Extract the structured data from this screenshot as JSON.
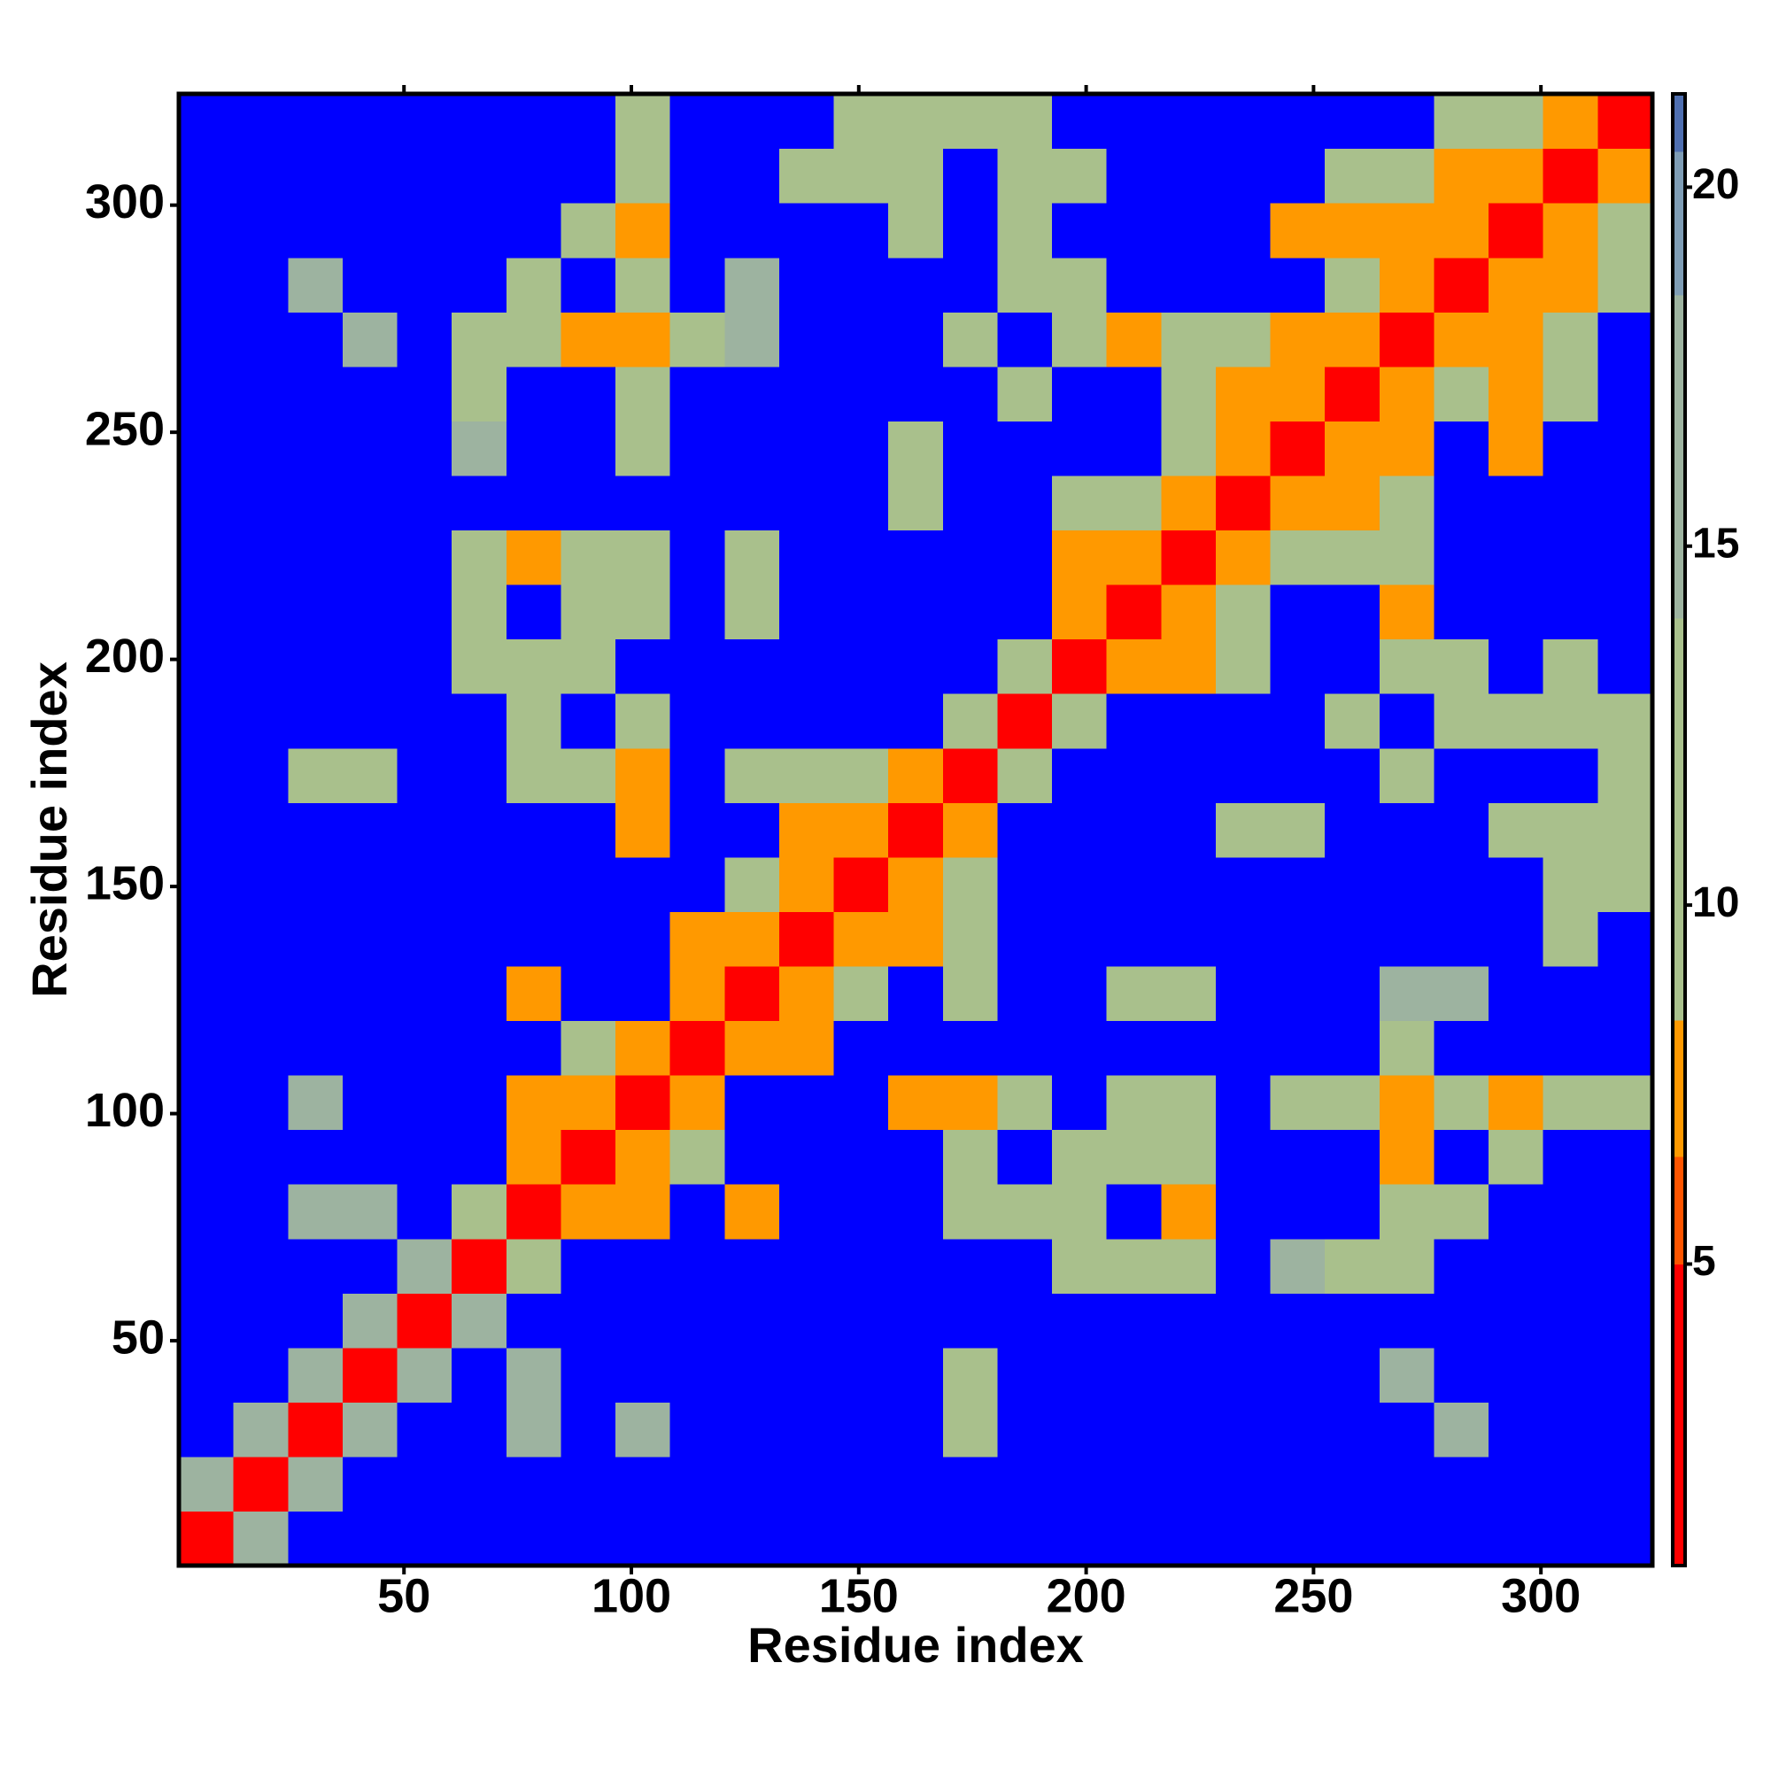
{
  "chart_data": {
    "type": "heatmap",
    "xlabel": "Residue index",
    "ylabel": "Residue index",
    "bins": [
      0.5,
      12.5,
      24.5,
      36.5,
      48.5,
      60.5,
      72.5,
      84.5,
      96.5,
      108.5,
      120.5,
      132.5,
      144.5,
      156.5,
      168.5,
      180.5,
      192.5,
      204.5,
      216.5,
      228.5,
      240.5,
      252.5,
      264.5,
      276.5,
      288.5,
      300.5,
      312.5,
      324.5
    ],
    "xlim": [
      0.5,
      324.5
    ],
    "ylim": [
      0.5,
      324.5
    ],
    "xticks": [
      50,
      100,
      150,
      200,
      250,
      300
    ],
    "yticks": [
      50,
      100,
      150,
      200,
      250,
      300
    ],
    "values": [
      [
        3,
        15,
        22,
        22,
        22,
        22,
        22,
        22,
        22,
        22,
        22,
        22,
        22,
        22,
        22,
        22,
        22,
        22,
        22,
        22,
        22,
        22,
        22,
        22,
        22,
        22,
        22
      ],
      [
        15,
        3,
        15,
        22,
        22,
        22,
        22,
        22,
        22,
        22,
        22,
        22,
        22,
        22,
        22,
        22,
        22,
        22,
        22,
        22,
        22,
        22,
        22,
        22,
        22,
        22,
        22
      ],
      [
        22,
        15,
        3,
        15,
        22,
        22,
        15,
        22,
        15,
        22,
        22,
        22,
        22,
        22,
        11,
        22,
        22,
        22,
        22,
        22,
        22,
        22,
        22,
        15,
        22,
        22,
        22
      ],
      [
        22,
        22,
        15,
        3,
        15,
        22,
        15,
        22,
        22,
        22,
        22,
        22,
        22,
        22,
        11,
        22,
        22,
        22,
        22,
        22,
        22,
        22,
        15,
        22,
        22,
        22,
        22
      ],
      [
        22,
        22,
        22,
        15,
        3,
        15,
        22,
        22,
        22,
        22,
        22,
        22,
        22,
        22,
        22,
        22,
        22,
        22,
        22,
        22,
        22,
        22,
        22,
        22,
        22,
        22,
        22
      ],
      [
        22,
        22,
        22,
        22,
        15,
        3,
        11,
        22,
        22,
        22,
        22,
        22,
        22,
        22,
        22,
        22,
        11,
        11,
        11,
        22,
        15,
        11,
        11,
        22,
        22,
        22,
        22
      ],
      [
        22,
        22,
        15,
        15,
        22,
        11,
        3,
        7,
        7,
        22,
        7,
        22,
        22,
        22,
        11,
        11,
        11,
        22,
        7,
        22,
        22,
        22,
        11,
        11,
        22,
        22,
        22
      ],
      [
        22,
        22,
        22,
        22,
        22,
        22,
        7,
        3,
        7,
        11,
        22,
        22,
        22,
        22,
        11,
        22,
        11,
        11,
        11,
        22,
        22,
        22,
        7,
        22,
        11,
        22,
        22
      ],
      [
        22,
        22,
        15,
        22,
        22,
        22,
        7,
        7,
        3,
        7,
        22,
        22,
        22,
        7,
        7,
        11,
        22,
        11,
        11,
        22,
        11,
        11,
        7,
        11,
        7,
        11,
        11
      ],
      [
        22,
        22,
        22,
        22,
        22,
        22,
        22,
        11,
        7,
        3,
        7,
        7,
        22,
        22,
        22,
        22,
        22,
        22,
        22,
        22,
        22,
        22,
        11,
        22,
        22,
        22,
        22
      ],
      [
        22,
        22,
        22,
        22,
        22,
        22,
        7,
        22,
        22,
        7,
        3,
        7,
        11,
        22,
        11,
        22,
        22,
        11,
        11,
        22,
        22,
        22,
        15,
        15,
        22,
        22,
        22
      ],
      [
        22,
        22,
        22,
        22,
        22,
        22,
        22,
        22,
        22,
        7,
        7,
        3,
        7,
        7,
        11,
        22,
        22,
        22,
        22,
        22,
        22,
        22,
        22,
        22,
        22,
        11,
        22
      ],
      [
        22,
        22,
        22,
        22,
        22,
        22,
        22,
        22,
        22,
        22,
        11,
        7,
        3,
        7,
        11,
        22,
        22,
        22,
        22,
        22,
        22,
        22,
        22,
        22,
        22,
        11,
        11
      ],
      [
        22,
        22,
        22,
        22,
        22,
        22,
        22,
        22,
        7,
        22,
        22,
        7,
        7,
        3,
        7,
        22,
        22,
        22,
        22,
        11,
        11,
        22,
        22,
        22,
        11,
        11,
        11
      ],
      [
        22,
        22,
        11,
        11,
        22,
        22,
        11,
        11,
        7,
        22,
        11,
        11,
        11,
        7,
        3,
        11,
        22,
        22,
        22,
        22,
        22,
        22,
        11,
        22,
        22,
        22,
        11
      ],
      [
        22,
        22,
        22,
        22,
        22,
        22,
        11,
        22,
        11,
        22,
        22,
        22,
        22,
        22,
        11,
        3,
        11,
        22,
        22,
        22,
        22,
        11,
        22,
        11,
        11,
        11,
        11
      ],
      [
        22,
        22,
        22,
        22,
        22,
        11,
        11,
        11,
        22,
        22,
        22,
        22,
        22,
        22,
        22,
        11,
        3,
        7,
        7,
        11,
        22,
        22,
        11,
        11,
        22,
        11,
        22
      ],
      [
        22,
        22,
        22,
        22,
        22,
        11,
        22,
        11,
        11,
        22,
        11,
        22,
        22,
        22,
        22,
        22,
        7,
        3,
        7,
        11,
        22,
        22,
        7,
        22,
        22,
        22,
        22
      ],
      [
        22,
        22,
        22,
        22,
        22,
        11,
        7,
        11,
        11,
        22,
        11,
        22,
        22,
        22,
        22,
        22,
        7,
        7,
        3,
        7,
        11,
        11,
        11,
        22,
        22,
        22,
        22
      ],
      [
        22,
        22,
        22,
        22,
        22,
        22,
        22,
        22,
        22,
        22,
        22,
        22,
        22,
        11,
        22,
        22,
        11,
        11,
        7,
        3,
        7,
        7,
        11,
        22,
        22,
        22,
        22
      ],
      [
        22,
        22,
        22,
        22,
        22,
        15,
        22,
        22,
        11,
        22,
        22,
        22,
        22,
        11,
        22,
        22,
        22,
        22,
        11,
        7,
        3,
        7,
        7,
        22,
        7,
        22,
        22
      ],
      [
        22,
        22,
        22,
        22,
        22,
        11,
        22,
        22,
        11,
        22,
        22,
        22,
        22,
        22,
        22,
        11,
        22,
        22,
        11,
        7,
        7,
        3,
        7,
        11,
        7,
        11,
        22
      ],
      [
        22,
        22,
        22,
        15,
        22,
        11,
        11,
        7,
        7,
        11,
        15,
        22,
        22,
        22,
        11,
        22,
        11,
        7,
        11,
        11,
        7,
        7,
        3,
        7,
        7,
        11,
        22
      ],
      [
        22,
        22,
        15,
        22,
        22,
        22,
        11,
        22,
        11,
        22,
        15,
        22,
        22,
        22,
        22,
        11,
        11,
        22,
        22,
        22,
        22,
        11,
        7,
        3,
        7,
        7,
        11
      ],
      [
        22,
        22,
        22,
        22,
        22,
        22,
        22,
        11,
        7,
        22,
        22,
        22,
        22,
        11,
        22,
        11,
        22,
        22,
        22,
        22,
        7,
        7,
        7,
        7,
        3,
        7,
        11
      ],
      [
        22,
        22,
        22,
        22,
        22,
        22,
        22,
        22,
        11,
        22,
        22,
        11,
        11,
        11,
        22,
        11,
        11,
        22,
        22,
        22,
        22,
        11,
        11,
        7,
        7,
        3,
        7
      ],
      [
        22,
        22,
        22,
        22,
        22,
        22,
        22,
        22,
        11,
        22,
        22,
        22,
        11,
        11,
        11,
        11,
        22,
        22,
        22,
        22,
        22,
        22,
        22,
        11,
        11,
        7,
        3
      ]
    ],
    "colorbar": {
      "lim": [
        0.8,
        21.3
      ],
      "ticks": [
        5,
        10,
        15,
        20
      ],
      "stops": [
        [
          0.8,
          "#ff0000"
        ],
        [
          5,
          "#ff5500"
        ],
        [
          6.5,
          "#ff9900"
        ],
        [
          8.4,
          "#a9c08c"
        ],
        [
          14,
          "#9db3a0"
        ],
        [
          18.5,
          "#7f9db5"
        ],
        [
          20.5,
          "#4f6fb0"
        ]
      ],
      "over_color": "#0000ff"
    }
  }
}
